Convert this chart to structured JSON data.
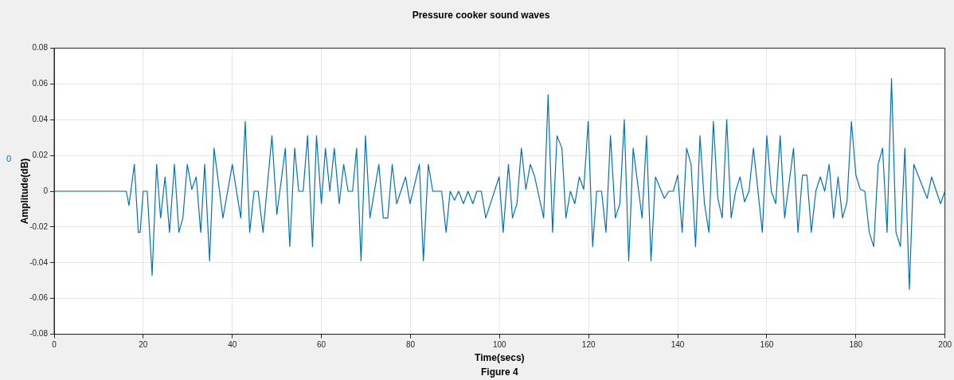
{
  "chart_data": {
    "type": "line",
    "title": "Pressure cooker sound waves",
    "xlabel": "Time(secs)",
    "ylabel": "Amplitude(dB)",
    "annotations": [
      "Figure 4",
      "0"
    ],
    "x": [
      0,
      16.2,
      16.8,
      18,
      18.9,
      19.3,
      20,
      20.9,
      22,
      23,
      23.9,
      24.9,
      25.9,
      27,
      28,
      28.9,
      29.9,
      30.9,
      31.9,
      32.9,
      33.8,
      34.9,
      35.9,
      37.9,
      40,
      41.9,
      42.9,
      43.9,
      44.9,
      45.8,
      46.9,
      48.9,
      50,
      51.9,
      52.9,
      54,
      54.9,
      55.9,
      56.9,
      58,
      58.9,
      60,
      60.9,
      61.9,
      62.9,
      64,
      65,
      66,
      67,
      67.9,
      68.9,
      69.9,
      70.9,
      72.9,
      73.9,
      74.9,
      75.9,
      76.9,
      78.9,
      79.9,
      82,
      82.9,
      84,
      85,
      87,
      88,
      88.9,
      89.9,
      90.8,
      91.9,
      92.9,
      94,
      94.9,
      95.9,
      96.9,
      99.9,
      100.8,
      102,
      102.9,
      103.9,
      104.9,
      105.9,
      106.9,
      107.9,
      109.9,
      110.9,
      111.9,
      112.9,
      114,
      114.9,
      115.9,
      116.9,
      117.9,
      118.9,
      119.9,
      120.9,
      121.8,
      122.9,
      123.9,
      124.9,
      126,
      127,
      128,
      129,
      130,
      132,
      133,
      134,
      135,
      137,
      138,
      139,
      140,
      141,
      142,
      143,
      144,
      145,
      146,
      147,
      148,
      149,
      150,
      151,
      152,
      153,
      154,
      155,
      156,
      157,
      159,
      160,
      161,
      162,
      163,
      164,
      166,
      167,
      168,
      169,
      170,
      171,
      172,
      173,
      174,
      175,
      176,
      177,
      178,
      179,
      180,
      181,
      182,
      183,
      184,
      185,
      186,
      187,
      188,
      189,
      190,
      191,
      192,
      193,
      196,
      197,
      199,
      200
    ],
    "series": [
      {
        "color": "#0072bd",
        "values": [
          0,
          0,
          -0.008,
          0.015,
          -0.023,
          -0.023,
          0,
          0,
          -0.047,
          0.015,
          -0.015,
          0.008,
          -0.023,
          0.015,
          -0.023,
          -0.015,
          0.015,
          0.001,
          0.008,
          -0.023,
          0.015,
          -0.039,
          0.024,
          -0.015,
          0.015,
          -0.015,
          0.039,
          -0.023,
          0,
          0,
          -0.023,
          0.031,
          -0.013,
          0.024,
          -0.031,
          0.024,
          0,
          0,
          0.031,
          -0.031,
          0.031,
          -0.007,
          0.024,
          0,
          0.024,
          -0.007,
          0.015,
          0,
          0,
          0.024,
          -0.039,
          0.031,
          -0.015,
          0.015,
          -0.015,
          -0.015,
          0.015,
          -0.007,
          0.008,
          -0.007,
          0.015,
          -0.039,
          0.015,
          0,
          0,
          -0.023,
          0,
          -0.005,
          0,
          -0.007,
          0,
          -0.007,
          0,
          0,
          -0.015,
          0.008,
          -0.023,
          0.015,
          -0.015,
          -0.007,
          0.024,
          0.001,
          0.015,
          0.008,
          -0.015,
          0.054,
          -0.023,
          0.031,
          0.024,
          -0.015,
          0,
          -0.007,
          0.008,
          0.001,
          0.039,
          -0.031,
          0,
          0,
          -0.023,
          0.031,
          -0.015,
          -0.007,
          0.04,
          -0.039,
          0.024,
          -0.015,
          0.031,
          -0.039,
          0.008,
          -0.004,
          0,
          0,
          0.009,
          -0.023,
          0.024,
          0.015,
          -0.031,
          0.031,
          -0.007,
          -0.023,
          0.039,
          -0.004,
          -0.015,
          0.04,
          -0.015,
          0,
          0.008,
          -0.006,
          0,
          0.024,
          -0.023,
          0.031,
          0,
          -0.007,
          0.031,
          -0.015,
          0.024,
          -0.023,
          0.009,
          0.009,
          -0.023,
          0,
          0.008,
          0,
          0.015,
          -0.015,
          0.008,
          -0.015,
          -0.006,
          0.039,
          0.009,
          0.001,
          0,
          -0.023,
          -0.031,
          0.015,
          0.024,
          -0.023,
          0.063,
          -0.023,
          -0.031,
          0.024,
          -0.055,
          0.015,
          -0.004,
          0.008,
          -0.007,
          0
        ]
      }
    ],
    "xlim": [
      0,
      200
    ],
    "xticks": [
      0,
      20,
      40,
      60,
      80,
      100,
      120,
      140,
      160,
      180,
      200
    ],
    "ylim": [
      -0.08,
      0.08
    ],
    "yticks": [
      -0.08,
      -0.06,
      -0.04,
      -0.02,
      0,
      0.02,
      0.04,
      0.06,
      0.08
    ],
    "grid": true,
    "legend": false,
    "marker": "none",
    "line_style": "solid"
  }
}
